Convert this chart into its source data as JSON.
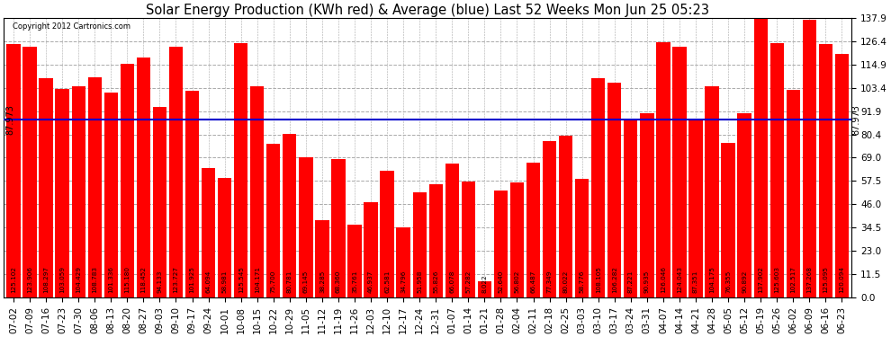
{
  "title": "Solar Energy Production (KWh red) & Average (blue) Last 52 Weeks Mon Jun 25 05:23",
  "copyright": "Copyright 2012 Cartronics.com",
  "average_value": 87.973,
  "avg_label": "87.973",
  "ylim": [
    0,
    137.9
  ],
  "yticks": [
    0.0,
    11.5,
    23.0,
    34.5,
    46.0,
    57.5,
    69.0,
    80.4,
    91.9,
    103.4,
    114.9,
    126.4,
    137.9
  ],
  "bar_color": "#ff0000",
  "avg_line_color": "#0000cc",
  "background_color": "#ffffff",
  "plot_bg_color": "#ffffff",
  "grid_color": "#aaaaaa",
  "categories": [
    "07-02",
    "07-09",
    "07-16",
    "07-23",
    "07-30",
    "08-06",
    "08-13",
    "08-20",
    "08-27",
    "09-03",
    "09-10",
    "09-17",
    "09-24",
    "10-01",
    "10-08",
    "10-15",
    "10-22",
    "10-29",
    "11-05",
    "11-12",
    "11-19",
    "11-26",
    "12-03",
    "12-10",
    "12-17",
    "12-24",
    "12-31",
    "01-07",
    "01-14",
    "01-21",
    "01-28",
    "02-04",
    "02-11",
    "02-18",
    "02-25",
    "03-03",
    "03-10",
    "03-17",
    "03-24",
    "03-31",
    "04-07",
    "04-14",
    "04-21",
    "04-28",
    "05-05",
    "05-12",
    "05-19",
    "05-26",
    "06-02",
    "06-09",
    "06-16",
    "06-23"
  ],
  "values": [
    125.102,
    123.906,
    108.297,
    103.059,
    104.429,
    108.783,
    101.336,
    115.18,
    118.452,
    94.133,
    123.727,
    101.925,
    64.094,
    58.981,
    125.545,
    104.171,
    75.7,
    80.781,
    69.145,
    38.285,
    68.36,
    35.761,
    46.937,
    62.581,
    34.796,
    51.958,
    55.826,
    66.078,
    57.282,
    8.022,
    52.64,
    56.802,
    66.487,
    77.349,
    80.022,
    58.776,
    108.105,
    106.282,
    87.221,
    90.935,
    126.046,
    124.043,
    87.351,
    104.175,
    76.355,
    90.892,
    137.902,
    125.603,
    102.517,
    137.268,
    125.095,
    120.094
  ],
  "value_label_fontsize": 5.2,
  "title_fontsize": 10.5,
  "tick_fontsize": 7.5
}
